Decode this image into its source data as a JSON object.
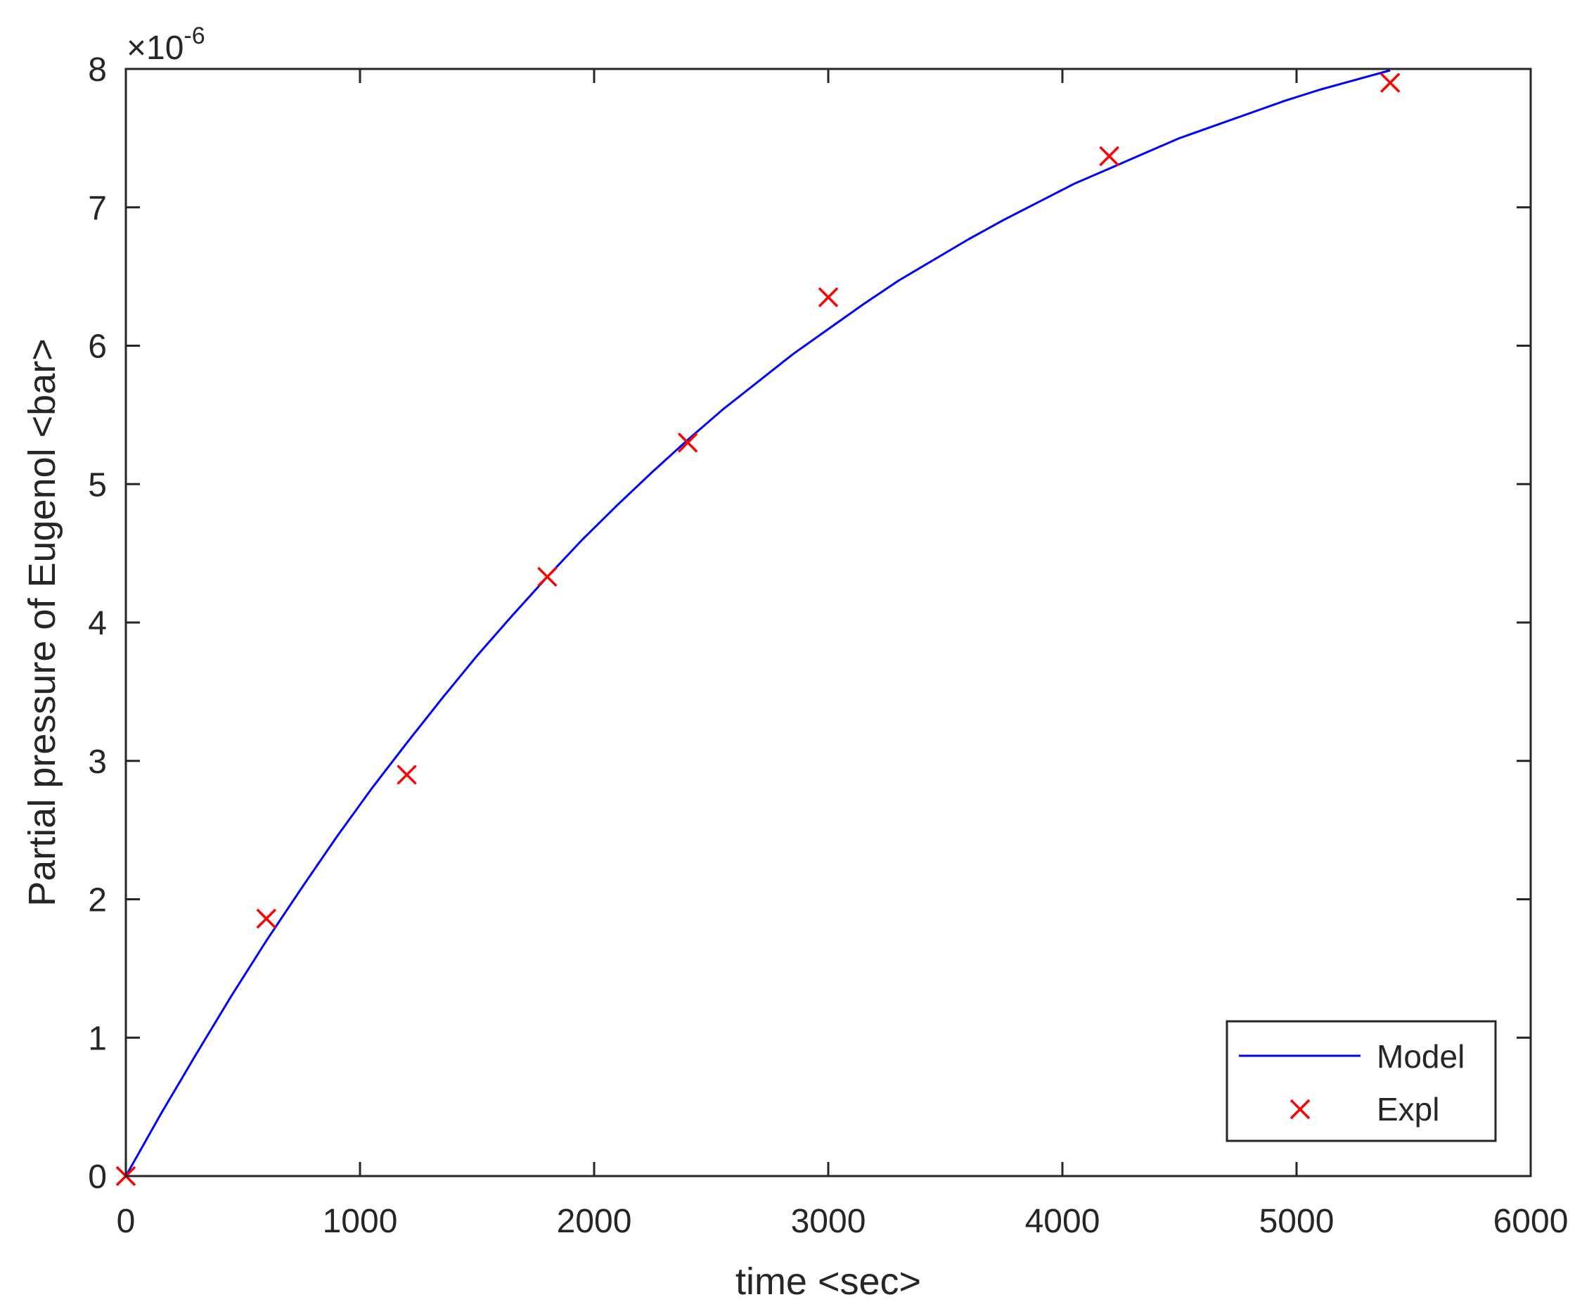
{
  "chart_data": {
    "type": "line",
    "title": "",
    "xlabel": "time <sec>",
    "ylabel": "Partial pressure of Eugenol <bar>",
    "exponent_label": {
      "base": "×10",
      "power": "-6"
    },
    "xlim": [
      0,
      6000
    ],
    "ylim": [
      0,
      8
    ],
    "y_multiplier": 1e-06,
    "xticks": [
      0,
      1000,
      2000,
      3000,
      4000,
      5000,
      6000
    ],
    "yticks": [
      0,
      1,
      2,
      3,
      4,
      5,
      6,
      7,
      8
    ],
    "grid": false,
    "legend_position": "bottom-right",
    "series": [
      {
        "name": "Model",
        "style": "line",
        "color": "#0000ff",
        "x": [
          0,
          150,
          300,
          450,
          600,
          750,
          900,
          1050,
          1200,
          1350,
          1500,
          1650,
          1800,
          1950,
          2100,
          2250,
          2400,
          2550,
          2700,
          2850,
          3000,
          3150,
          3300,
          3450,
          3600,
          3750,
          3900,
          4050,
          4200,
          4350,
          4500,
          4650,
          4800,
          4950,
          5100,
          5250,
          5400
        ],
        "y": [
          0,
          0.45,
          0.88,
          1.3,
          1.7,
          2.08,
          2.45,
          2.8,
          3.13,
          3.45,
          3.76,
          4.05,
          4.33,
          4.6,
          4.85,
          5.09,
          5.32,
          5.54,
          5.74,
          5.94,
          6.12,
          6.3,
          6.47,
          6.62,
          6.77,
          6.91,
          7.04,
          7.17,
          7.28,
          7.39,
          7.5,
          7.59,
          7.68,
          7.77,
          7.85,
          7.92,
          7.99
        ]
      },
      {
        "name": "Expl",
        "style": "marker-x",
        "color": "#ff0000",
        "x": [
          0,
          600,
          1200,
          1800,
          2400,
          3000,
          4200,
          5400
        ],
        "y": [
          0,
          1.86,
          2.9,
          4.33,
          5.3,
          6.35,
          7.37,
          7.9
        ]
      }
    ]
  }
}
